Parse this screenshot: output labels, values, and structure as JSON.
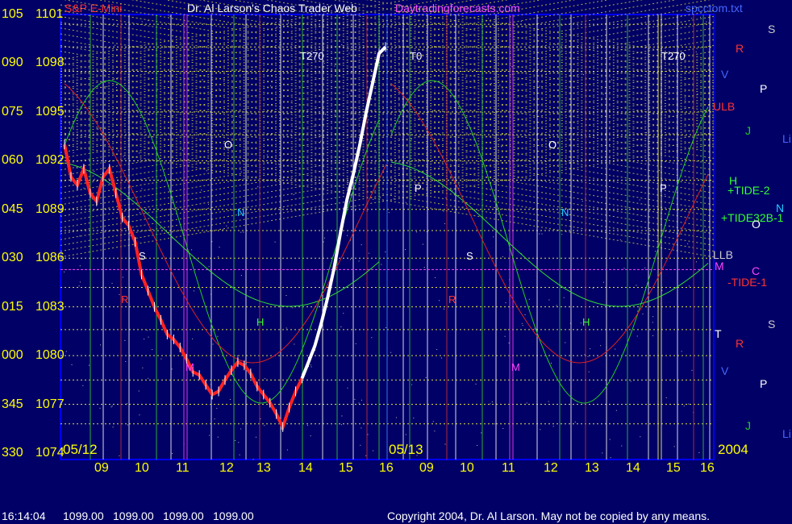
{
  "header": {
    "left_title": "S&P E-Mini",
    "center_title": "Dr. Al Larson's Chaos Trader Web",
    "site": "Daytradingforecasts.com",
    "file": "spcctom.txt"
  },
  "footer": {
    "time": "16:14:04",
    "ohlc": [
      "1099.00",
      "1099.00",
      "1099.00",
      "1099.00"
    ],
    "copyright": "Copyright 2004, Dr. Al Larson. May not be copied by any means."
  },
  "chart_data": {
    "type": "line",
    "y_left": [
      {
        "deg": "105",
        "price": "1101"
      },
      {
        "deg": "090",
        "price": "1098"
      },
      {
        "deg": "075",
        "price": "1095"
      },
      {
        "deg": "060",
        "price": "1092"
      },
      {
        "deg": "045",
        "price": "1089"
      },
      {
        "deg": "030",
        "price": "1086"
      },
      {
        "deg": "015",
        "price": "1083"
      },
      {
        "deg": "000",
        "price": "1080"
      },
      {
        "deg": "345",
        "price": "1077"
      },
      {
        "deg": "330",
        "price": "1074"
      }
    ],
    "ylim": [
      1074,
      1101
    ],
    "x_ticks_day1": [
      "09",
      "10",
      "11",
      "12",
      "13",
      "14",
      "15",
      "16"
    ],
    "x_ticks_day2": [
      "09",
      "10",
      "11",
      "12",
      "13",
      "14",
      "15",
      "16"
    ],
    "date1": "05/12",
    "date2": "05/13",
    "year": "2004",
    "price_series_day1": [
      1093,
      1091,
      1090.5,
      1091.5,
      1090,
      1089.5,
      1091,
      1091.5,
      1090,
      1088.5,
      1088,
      1087,
      1085,
      1084,
      1083,
      1082.2,
      1081.3,
      1081,
      1080.5,
      1079.8,
      1079,
      1078.8,
      1078.2,
      1077.6,
      1077.8,
      1078.5,
      1079.1,
      1079.6,
      1079.4,
      1078.9,
      1078.1,
      1077.6,
      1077.1,
      1076.4,
      1075.6,
      1076.8,
      1077.8,
      1078.6,
      1079.6,
      1080.6,
      1082,
      1083.6,
      1085.4,
      1087.6,
      1089.6,
      1091.2,
      1093,
      1095,
      1096.8,
      1098.6,
      1099
    ],
    "right_labels": [
      "S",
      "R",
      "V",
      "P",
      "ULB",
      "J",
      "Li",
      "H",
      "+TIDE-2",
      "+TIDE32B-1",
      "N",
      "O",
      "LLB",
      "M",
      "C",
      "-TIDE-1",
      "S",
      "T",
      "R",
      "V",
      "P",
      "J",
      "Li"
    ],
    "annotations": [
      "T270",
      "T0",
      "T270",
      "O",
      "N",
      "P",
      "O",
      "N",
      "P",
      "S",
      "H",
      "M",
      "R",
      "S",
      "H",
      "R",
      "M"
    ]
  }
}
